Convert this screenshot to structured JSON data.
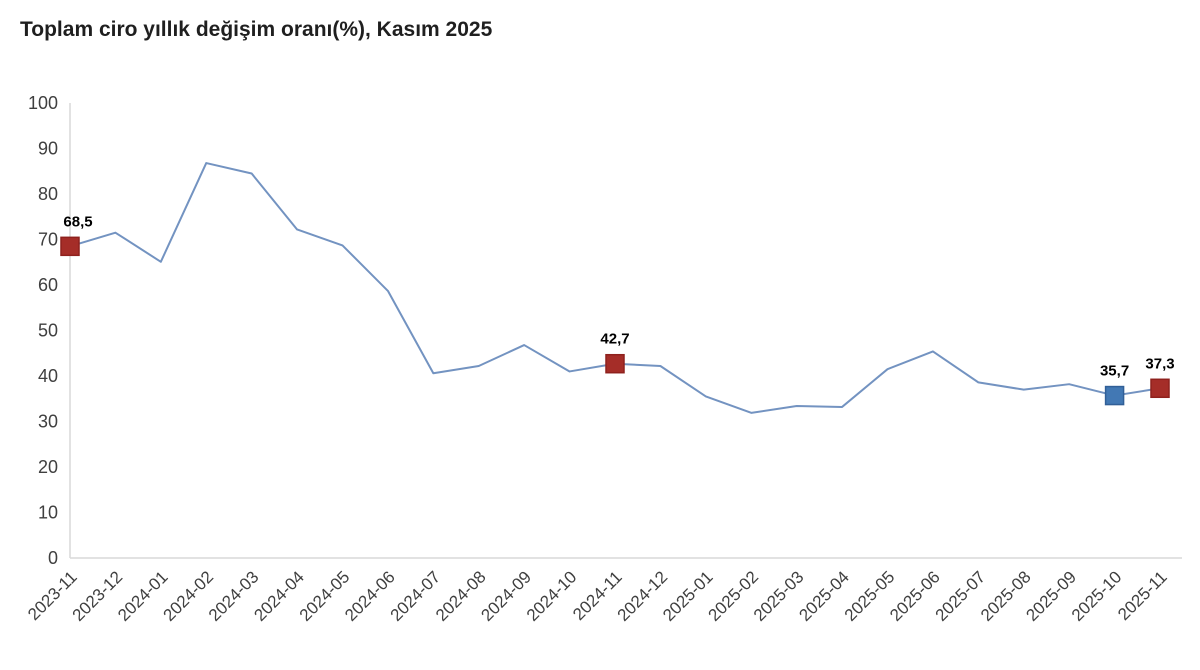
{
  "title": "Toplam ciro yıllık değişim oranı(%), Kasım 2025",
  "chart_data": {
    "type": "line",
    "title": "Toplam ciro yıllık değişim oranı(%), Kasım 2025",
    "categories": [
      "2023-11",
      "2023-12",
      "2024-01",
      "2024-02",
      "2024-03",
      "2024-04",
      "2024-05",
      "2024-06",
      "2024-07",
      "2024-08",
      "2024-09",
      "2024-10",
      "2024-11",
      "2024-12",
      "2025-01",
      "2025-02",
      "2025-03",
      "2025-04",
      "2025-05",
      "2025-06",
      "2025-07",
      "2025-08",
      "2025-09",
      "2025-10",
      "2025-11"
    ],
    "series": [
      {
        "name": "Toplam ciro yıllık değişim oranı (%)",
        "values": [
          68.5,
          71.5,
          65.1,
          86.8,
          84.5,
          72.2,
          68.7,
          58.7,
          40.6,
          42.2,
          46.8,
          41.0,
          42.7,
          42.2,
          35.5,
          31.9,
          33.4,
          33.2,
          41.5,
          45.4,
          38.6,
          37.0,
          38.2,
          35.7,
          37.3
        ]
      }
    ],
    "xlabel": "",
    "ylabel": "",
    "ylim": [
      0,
      100
    ],
    "ytick_step": 10,
    "grid": false,
    "legend_position": "none",
    "line_color": "#7393c1",
    "axis_color": "#d9d9d9",
    "tick_text_color": "#3f3f3f",
    "annotation_text_color": "#000000",
    "annotations": [
      {
        "index": 0,
        "label": "68,5",
        "marker_color": "#a52d28",
        "border_color": "#8f211d",
        "dx": 8
      },
      {
        "index": 12,
        "label": "42,7",
        "marker_color": "#a52d28",
        "border_color": "#8f211d",
        "dx": 0
      },
      {
        "index": 23,
        "label": "35,7",
        "marker_color": "#4278b4",
        "border_color": "#315f97",
        "dx": 0
      },
      {
        "index": 24,
        "label": "37,3",
        "marker_color": "#a52d28",
        "border_color": "#8f211d",
        "dx": 0
      }
    ]
  }
}
